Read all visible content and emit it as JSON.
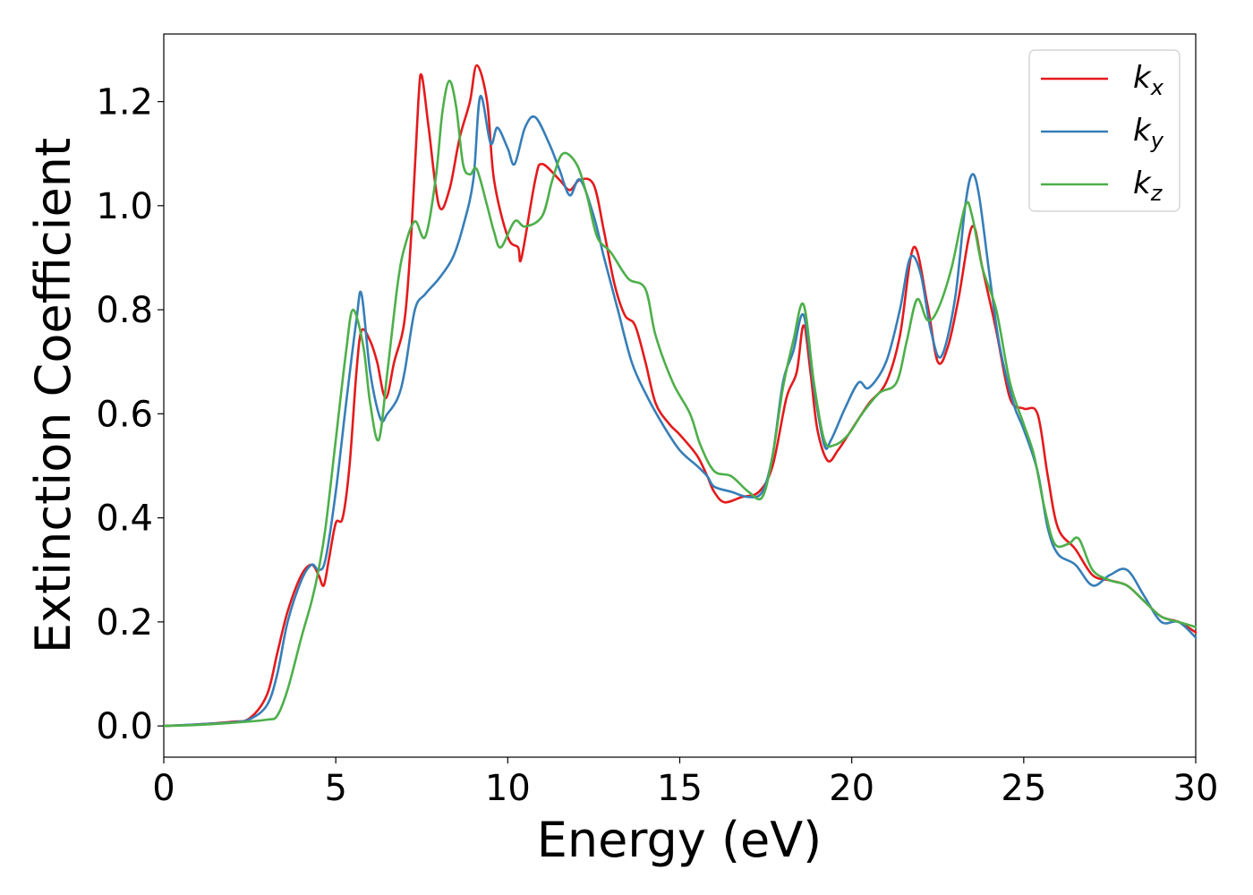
{
  "chart_data": {
    "type": "line",
    "title": "",
    "xlabel": "Energy (eV)",
    "ylabel": "Extinction Coefficient",
    "xlim": [
      0,
      30
    ],
    "ylim": [
      -0.06,
      1.33
    ],
    "xticks": [
      0,
      5,
      10,
      15,
      20,
      25,
      30
    ],
    "xtick_labels": [
      "0",
      "5",
      "10",
      "15",
      "20",
      "25",
      "30"
    ],
    "yticks": [
      0.0,
      0.2,
      0.4,
      0.6,
      0.8,
      1.0,
      1.2
    ],
    "ytick_labels": [
      "0.0",
      "0.2",
      "0.4",
      "0.6",
      "0.8",
      "1.0",
      "1.2"
    ],
    "grid": false,
    "legend_position": "top-right",
    "series": [
      {
        "name": "k_x",
        "label_base": "k",
        "label_sub": "x",
        "color": "#e41a1c",
        "points": [
          [
            0,
            0
          ],
          [
            1,
            0.003
          ],
          [
            2,
            0.008
          ],
          [
            2.5,
            0.015
          ],
          [
            3,
            0.06
          ],
          [
            3.3,
            0.14
          ],
          [
            3.6,
            0.22
          ],
          [
            4,
            0.29
          ],
          [
            4.3,
            0.31
          ],
          [
            4.5,
            0.29
          ],
          [
            4.65,
            0.27
          ],
          [
            4.8,
            0.32
          ],
          [
            5,
            0.39
          ],
          [
            5.2,
            0.4
          ],
          [
            5.4,
            0.5
          ],
          [
            5.6,
            0.68
          ],
          [
            5.75,
            0.76
          ],
          [
            6,
            0.74
          ],
          [
            6.2,
            0.7
          ],
          [
            6.45,
            0.63
          ],
          [
            6.7,
            0.7
          ],
          [
            7,
            0.78
          ],
          [
            7.2,
            0.95
          ],
          [
            7.4,
            1.2
          ],
          [
            7.5,
            1.25
          ],
          [
            7.7,
            1.15
          ],
          [
            8,
            1.0
          ],
          [
            8.3,
            1.03
          ],
          [
            8.6,
            1.13
          ],
          [
            8.9,
            1.2
          ],
          [
            9.1,
            1.27
          ],
          [
            9.4,
            1.2
          ],
          [
            9.6,
            1.05
          ],
          [
            10,
            0.94
          ],
          [
            10.3,
            0.92
          ],
          [
            10.4,
            0.9
          ],
          [
            10.8,
            1.05
          ],
          [
            11,
            1.08
          ],
          [
            11.5,
            1.05
          ],
          [
            11.8,
            1.03
          ],
          [
            12.1,
            1.05
          ],
          [
            12.5,
            1.04
          ],
          [
            12.8,
            0.95
          ],
          [
            13.1,
            0.85
          ],
          [
            13.4,
            0.79
          ],
          [
            13.7,
            0.77
          ],
          [
            14,
            0.7
          ],
          [
            14.3,
            0.62
          ],
          [
            14.7,
            0.58
          ],
          [
            15,
            0.56
          ],
          [
            15.5,
            0.52
          ],
          [
            15.8,
            0.48
          ],
          [
            16,
            0.45
          ],
          [
            16.3,
            0.43
          ],
          [
            16.8,
            0.44
          ],
          [
            17.3,
            0.45
          ],
          [
            17.7,
            0.5
          ],
          [
            18.1,
            0.63
          ],
          [
            18.4,
            0.68
          ],
          [
            18.6,
            0.77
          ],
          [
            18.8,
            0.68
          ],
          [
            19,
            0.57
          ],
          [
            19.3,
            0.51
          ],
          [
            19.6,
            0.53
          ],
          [
            20,
            0.57
          ],
          [
            20.5,
            0.62
          ],
          [
            21,
            0.66
          ],
          [
            21.4,
            0.75
          ],
          [
            21.8,
            0.92
          ],
          [
            22.2,
            0.81
          ],
          [
            22.5,
            0.7
          ],
          [
            22.8,
            0.73
          ],
          [
            23.1,
            0.82
          ],
          [
            23.5,
            0.96
          ],
          [
            23.8,
            0.88
          ],
          [
            24.2,
            0.76
          ],
          [
            24.6,
            0.63
          ],
          [
            25,
            0.61
          ],
          [
            25.4,
            0.6
          ],
          [
            25.7,
            0.48
          ],
          [
            26,
            0.38
          ],
          [
            26.5,
            0.34
          ],
          [
            27,
            0.29
          ],
          [
            27.5,
            0.28
          ],
          [
            28,
            0.27
          ],
          [
            28.5,
            0.24
          ],
          [
            29,
            0.21
          ],
          [
            29.5,
            0.2
          ],
          [
            30,
            0.18
          ]
        ]
      },
      {
        "name": "k_y",
        "label_base": "k",
        "label_sub": "y",
        "color": "#377eb8",
        "points": [
          [
            0,
            0
          ],
          [
            1,
            0.003
          ],
          [
            2,
            0.007
          ],
          [
            2.5,
            0.013
          ],
          [
            3,
            0.04
          ],
          [
            3.3,
            0.1
          ],
          [
            3.6,
            0.2
          ],
          [
            4,
            0.28
          ],
          [
            4.3,
            0.31
          ],
          [
            4.5,
            0.3
          ],
          [
            4.7,
            0.32
          ],
          [
            5,
            0.45
          ],
          [
            5.3,
            0.62
          ],
          [
            5.6,
            0.78
          ],
          [
            5.75,
            0.83
          ],
          [
            6,
            0.68
          ],
          [
            6.3,
            0.59
          ],
          [
            6.5,
            0.6
          ],
          [
            6.8,
            0.63
          ],
          [
            7,
            0.68
          ],
          [
            7.3,
            0.8
          ],
          [
            7.6,
            0.83
          ],
          [
            8,
            0.86
          ],
          [
            8.4,
            0.9
          ],
          [
            8.7,
            0.96
          ],
          [
            9,
            1.05
          ],
          [
            9.2,
            1.21
          ],
          [
            9.5,
            1.12
          ],
          [
            9.7,
            1.15
          ],
          [
            10,
            1.11
          ],
          [
            10.2,
            1.08
          ],
          [
            10.5,
            1.15
          ],
          [
            10.8,
            1.17
          ],
          [
            11.2,
            1.12
          ],
          [
            11.5,
            1.07
          ],
          [
            11.8,
            1.02
          ],
          [
            12.1,
            1.05
          ],
          [
            12.5,
            0.98
          ],
          [
            12.8,
            0.9
          ],
          [
            13.2,
            0.8
          ],
          [
            13.6,
            0.7
          ],
          [
            14,
            0.64
          ],
          [
            14.5,
            0.58
          ],
          [
            15,
            0.53
          ],
          [
            15.5,
            0.5
          ],
          [
            15.8,
            0.48
          ],
          [
            16,
            0.46
          ],
          [
            16.5,
            0.45
          ],
          [
            17,
            0.44
          ],
          [
            17.4,
            0.45
          ],
          [
            17.7,
            0.52
          ],
          [
            18,
            0.66
          ],
          [
            18.3,
            0.72
          ],
          [
            18.6,
            0.79
          ],
          [
            18.9,
            0.65
          ],
          [
            19.2,
            0.54
          ],
          [
            19.4,
            0.55
          ],
          [
            19.8,
            0.61
          ],
          [
            20.2,
            0.66
          ],
          [
            20.5,
            0.65
          ],
          [
            21,
            0.7
          ],
          [
            21.4,
            0.8
          ],
          [
            21.7,
            0.9
          ],
          [
            22,
            0.87
          ],
          [
            22.3,
            0.76
          ],
          [
            22.6,
            0.71
          ],
          [
            23,
            0.82
          ],
          [
            23.3,
            1.0
          ],
          [
            23.5,
            1.06
          ],
          [
            23.7,
            1.02
          ],
          [
            24,
            0.87
          ],
          [
            24.3,
            0.73
          ],
          [
            24.7,
            0.62
          ],
          [
            25,
            0.57
          ],
          [
            25.4,
            0.49
          ],
          [
            25.7,
            0.38
          ],
          [
            26,
            0.33
          ],
          [
            26.5,
            0.31
          ],
          [
            27,
            0.27
          ],
          [
            27.5,
            0.29
          ],
          [
            28,
            0.3
          ],
          [
            28.5,
            0.25
          ],
          [
            29,
            0.2
          ],
          [
            29.5,
            0.2
          ],
          [
            30,
            0.17
          ]
        ]
      },
      {
        "name": "k_z",
        "label_base": "k",
        "label_sub": "z",
        "color": "#4daf4a",
        "points": [
          [
            0,
            0
          ],
          [
            1,
            0.002
          ],
          [
            2,
            0.006
          ],
          [
            3,
            0.012
          ],
          [
            3.3,
            0.02
          ],
          [
            3.6,
            0.07
          ],
          [
            4,
            0.17
          ],
          [
            4.3,
            0.24
          ],
          [
            4.5,
            0.3
          ],
          [
            4.7,
            0.38
          ],
          [
            5,
            0.55
          ],
          [
            5.3,
            0.72
          ],
          [
            5.5,
            0.8
          ],
          [
            5.8,
            0.73
          ],
          [
            6,
            0.62
          ],
          [
            6.25,
            0.55
          ],
          [
            6.5,
            0.68
          ],
          [
            6.8,
            0.85
          ],
          [
            7,
            0.92
          ],
          [
            7.3,
            0.97
          ],
          [
            7.6,
            0.94
          ],
          [
            7.9,
            1.05
          ],
          [
            8.1,
            1.18
          ],
          [
            8.3,
            1.24
          ],
          [
            8.5,
            1.19
          ],
          [
            8.7,
            1.08
          ],
          [
            8.9,
            1.06
          ],
          [
            9.1,
            1.07
          ],
          [
            9.4,
            1.0
          ],
          [
            9.6,
            0.95
          ],
          [
            9.8,
            0.92
          ],
          [
            10.2,
            0.97
          ],
          [
            10.5,
            0.96
          ],
          [
            11,
            0.98
          ],
          [
            11.3,
            1.05
          ],
          [
            11.6,
            1.1
          ],
          [
            12,
            1.08
          ],
          [
            12.3,
            1.02
          ],
          [
            12.6,
            0.94
          ],
          [
            13,
            0.91
          ],
          [
            13.5,
            0.86
          ],
          [
            14,
            0.84
          ],
          [
            14.3,
            0.75
          ],
          [
            14.8,
            0.66
          ],
          [
            15.3,
            0.6
          ],
          [
            15.6,
            0.54
          ],
          [
            16,
            0.49
          ],
          [
            16.5,
            0.48
          ],
          [
            17,
            0.45
          ],
          [
            17.4,
            0.44
          ],
          [
            17.7,
            0.52
          ],
          [
            18,
            0.65
          ],
          [
            18.3,
            0.74
          ],
          [
            18.6,
            0.81
          ],
          [
            18.9,
            0.66
          ],
          [
            19.2,
            0.55
          ],
          [
            19.5,
            0.54
          ],
          [
            19.9,
            0.56
          ],
          [
            20.3,
            0.6
          ],
          [
            20.8,
            0.64
          ],
          [
            21.3,
            0.66
          ],
          [
            21.6,
            0.74
          ],
          [
            21.9,
            0.82
          ],
          [
            22.2,
            0.78
          ],
          [
            22.5,
            0.8
          ],
          [
            22.9,
            0.88
          ],
          [
            23.3,
            1.0
          ],
          [
            23.5,
            0.98
          ],
          [
            23.8,
            0.88
          ],
          [
            24.2,
            0.8
          ],
          [
            24.6,
            0.66
          ],
          [
            25,
            0.58
          ],
          [
            25.3,
            0.52
          ],
          [
            25.6,
            0.42
          ],
          [
            25.9,
            0.35
          ],
          [
            26.3,
            0.35
          ],
          [
            26.6,
            0.36
          ],
          [
            27,
            0.3
          ],
          [
            27.5,
            0.28
          ],
          [
            28,
            0.27
          ],
          [
            28.5,
            0.24
          ],
          [
            29,
            0.21
          ],
          [
            29.5,
            0.2
          ],
          [
            30,
            0.19
          ]
        ]
      }
    ]
  }
}
